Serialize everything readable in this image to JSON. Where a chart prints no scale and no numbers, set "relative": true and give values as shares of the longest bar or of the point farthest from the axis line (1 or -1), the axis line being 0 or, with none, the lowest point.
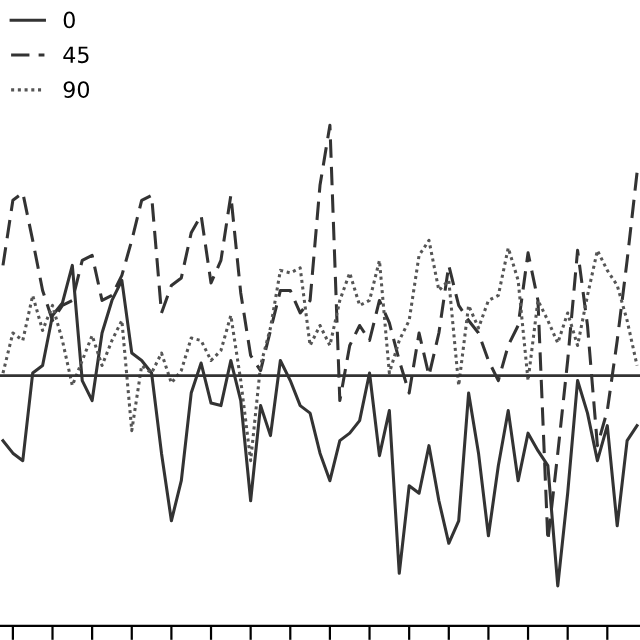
{
  "chart_data": {
    "type": "line",
    "relative": true,
    "legend": "top left",
    "grid": false,
    "categories": [
      null,
      null,
      null,
      null,
      null,
      null,
      null,
      null,
      null,
      null,
      null,
      null,
      null,
      null,
      null,
      null,
      null,
      null,
      null,
      null,
      null,
      null,
      null,
      null,
      null,
      null,
      null,
      null,
      null,
      null,
      null,
      null,
      null,
      null,
      null,
      null,
      null,
      null,
      null,
      null,
      null,
      null,
      null,
      null,
      null,
      null,
      null,
      null,
      null,
      null,
      null,
      null,
      null,
      null,
      null,
      null,
      null,
      null,
      null,
      null,
      null,
      null,
      null,
      null,
      null
    ],
    "series": [
      {
        "name": "0",
        "color": "#333333",
        "line_style": "solid",
        "values": [
          -0.26,
          -0.31,
          -0.34,
          0.01,
          0.04,
          0.24,
          0.29,
          0.44,
          -0.02,
          -0.1,
          0.17,
          0.3,
          0.38,
          0.09,
          0.06,
          0.01,
          -0.31,
          -0.58,
          -0.42,
          -0.07,
          0.05,
          -0.11,
          -0.12,
          0.06,
          -0.1,
          -0.5,
          -0.12,
          -0.24,
          0.06,
          -0.02,
          -0.12,
          -0.15,
          -0.31,
          -0.42,
          -0.26,
          -0.23,
          -0.18,
          0.01,
          -0.32,
          -0.14,
          -0.79,
          -0.44,
          -0.47,
          -0.28,
          -0.5,
          -0.67,
          -0.58,
          -0.07,
          -0.31,
          -0.64,
          -0.36,
          -0.14,
          -0.42,
          -0.23,
          -0.3,
          -0.36,
          -0.84,
          -0.47,
          -0.02,
          -0.15,
          -0.34,
          -0.2,
          -0.6,
          -0.26,
          -0.2
        ]
      },
      {
        "name": "45",
        "color": "#333333",
        "line_style": "dashed",
        "values": [
          0.44,
          0.7,
          0.73,
          0.54,
          0.34,
          0.22,
          0.28,
          0.3,
          0.46,
          0.48,
          0.3,
          0.32,
          0.4,
          0.54,
          0.7,
          0.72,
          0.25,
          0.36,
          0.39,
          0.57,
          0.64,
          0.37,
          0.46,
          0.72,
          0.33,
          0.08,
          0.02,
          0.18,
          0.34,
          0.34,
          0.25,
          0.3,
          0.76,
          1.0,
          -0.1,
          0.12,
          0.2,
          0.14,
          0.3,
          0.21,
          0.06,
          -0.07,
          0.17,
          0.0,
          0.17,
          0.44,
          0.28,
          0.22,
          0.17,
          0.06,
          -0.02,
          0.12,
          0.2,
          0.49,
          0.3,
          -0.66,
          -0.31,
          0.06,
          0.5,
          0.2,
          -0.28,
          -0.14,
          0.14,
          0.46,
          0.81
        ]
      },
      {
        "name": "90",
        "color": "#555555",
        "line_style": "dotted",
        "values": [
          0.01,
          0.17,
          0.14,
          0.32,
          0.18,
          0.28,
          0.14,
          -0.04,
          0.06,
          0.16,
          0.04,
          0.14,
          0.22,
          -0.22,
          0.04,
          0.01,
          0.09,
          -0.03,
          0.02,
          0.15,
          0.14,
          0.06,
          0.1,
          0.24,
          -0.02,
          -0.34,
          0.04,
          0.19,
          0.42,
          0.41,
          0.43,
          0.12,
          0.2,
          0.12,
          0.3,
          0.41,
          0.28,
          0.3,
          0.46,
          0.01,
          0.14,
          0.22,
          0.48,
          0.54,
          0.34,
          0.38,
          -0.04,
          0.28,
          0.19,
          0.3,
          0.32,
          0.51,
          0.38,
          -0.02,
          0.3,
          0.22,
          0.13,
          0.25,
          0.12,
          0.32,
          0.5,
          0.42,
          0.36,
          0.22,
          0.04
        ]
      }
    ]
  }
}
